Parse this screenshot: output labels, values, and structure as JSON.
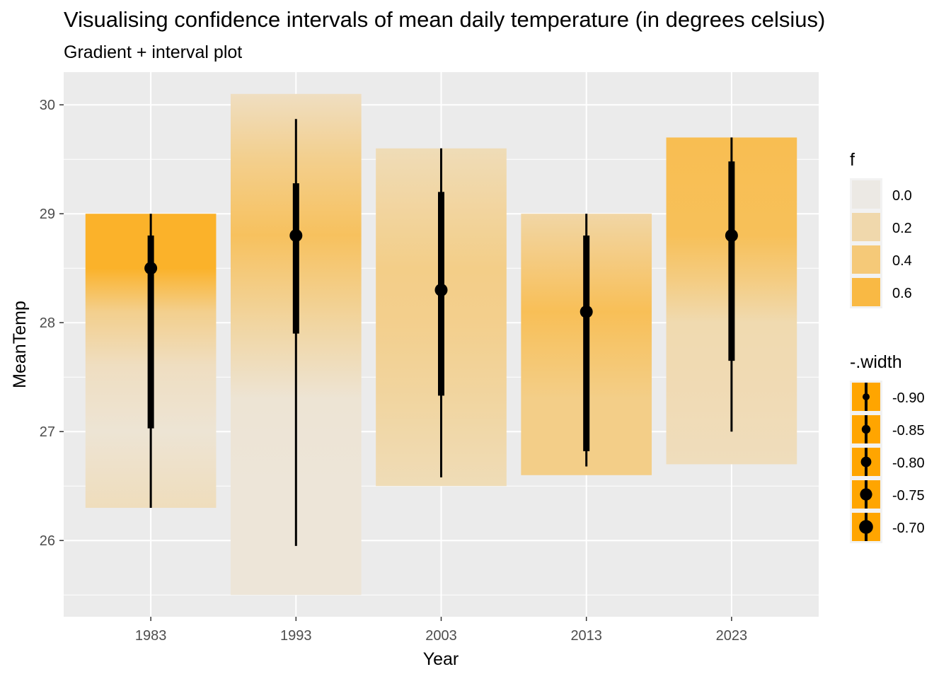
{
  "chart_data": {
    "type": "interval",
    "title": "Visualising confidence intervals of mean daily temperature (in degrees celsius)",
    "subtitle": "Gradient + interval plot",
    "xlabel": "Year",
    "ylabel": "MeanTemp",
    "categories": [
      "1983",
      "1993",
      "2003",
      "2013",
      "2023"
    ],
    "ylim": [
      25.3,
      30.3
    ],
    "yticks": [
      26,
      27,
      28,
      29,
      30
    ],
    "y_tick_labels": [
      "26",
      "27",
      "28",
      "29",
      "30"
    ],
    "grid": true,
    "point_color": "#000000",
    "gradient_color": "#FFA500",
    "panel_background": "#EBEBEB",
    "groups": [
      {
        "year": "1983",
        "mean": 28.5,
        "min": 26.3,
        "max": 29.0,
        "intervals": [
          [
            27.03,
            28.8
          ],
          [
            26.3,
            29.0
          ]
        ],
        "density": [
          [
            26.3,
            0.2
          ],
          [
            27.0,
            0.1
          ],
          [
            27.6,
            0.18
          ],
          [
            28.1,
            0.4
          ],
          [
            28.5,
            0.82
          ],
          [
            29.0,
            0.82
          ]
        ]
      },
      {
        "year": "1993",
        "mean": 28.8,
        "min": 25.5,
        "max": 30.1,
        "intervals": [
          [
            27.9,
            29.28
          ],
          [
            25.95,
            29.87
          ]
        ],
        "density": [
          [
            25.5,
            0.08
          ],
          [
            26.5,
            0.08
          ],
          [
            27.3,
            0.1
          ],
          [
            28.0,
            0.32
          ],
          [
            28.8,
            0.6
          ],
          [
            29.5,
            0.4
          ],
          [
            30.1,
            0.18
          ]
        ]
      },
      {
        "year": "2003",
        "mean": 28.3,
        "min": 26.5,
        "max": 29.6,
        "intervals": [
          [
            27.33,
            29.2
          ],
          [
            26.58,
            29.6
          ]
        ],
        "density": [
          [
            26.5,
            0.22
          ],
          [
            27.3,
            0.32
          ],
          [
            28.0,
            0.4
          ],
          [
            28.5,
            0.42
          ],
          [
            29.0,
            0.33
          ],
          [
            29.6,
            0.22
          ]
        ]
      },
      {
        "year": "2013",
        "mean": 28.1,
        "min": 26.6,
        "max": 29.0,
        "intervals": [
          [
            26.82,
            28.8
          ],
          [
            26.68,
            29.0
          ]
        ],
        "density": [
          [
            26.6,
            0.42
          ],
          [
            27.3,
            0.42
          ],
          [
            27.8,
            0.55
          ],
          [
            28.1,
            0.63
          ],
          [
            28.5,
            0.48
          ],
          [
            29.0,
            0.3
          ]
        ]
      },
      {
        "year": "2023",
        "mean": 28.8,
        "min": 26.7,
        "max": 29.7,
        "intervals": [
          [
            27.65,
            29.48
          ],
          [
            27.0,
            29.7
          ]
        ],
        "density": [
          [
            26.7,
            0.2
          ],
          [
            27.5,
            0.24
          ],
          [
            28.0,
            0.25
          ],
          [
            28.4,
            0.45
          ],
          [
            28.8,
            0.62
          ],
          [
            29.7,
            0.65
          ]
        ]
      }
    ],
    "legend_placement": "right",
    "legend_f": {
      "title": "f",
      "levels": [
        0.0,
        0.2,
        0.4,
        0.6
      ],
      "labels": [
        "0.0",
        "0.2",
        "0.4",
        "0.6"
      ]
    },
    "legend_width": {
      "title": "-.width",
      "labels": [
        "-0.90",
        "-0.85",
        "-0.80",
        "-0.75",
        "-0.70"
      ]
    }
  }
}
